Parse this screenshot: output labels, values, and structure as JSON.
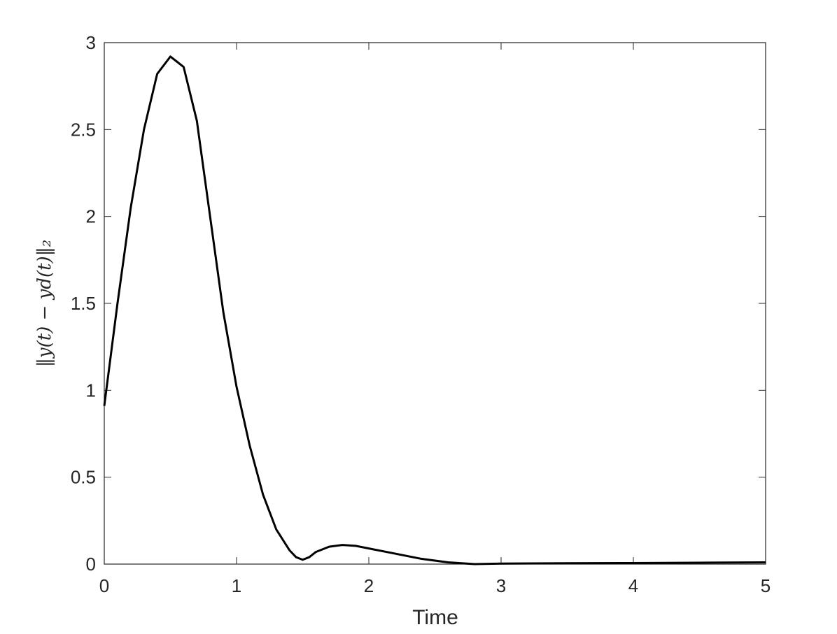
{
  "chart_data": {
    "type": "line",
    "xlabel": "Time",
    "ylabel": "‖y(t) − yd(t)‖₂",
    "x": [
      0,
      0.1,
      0.2,
      0.3,
      0.4,
      0.5,
      0.6,
      0.7,
      0.8,
      0.9,
      1.0,
      1.1,
      1.2,
      1.3,
      1.4,
      1.45,
      1.5,
      1.55,
      1.6,
      1.7,
      1.8,
      1.9,
      2.0,
      2.2,
      2.4,
      2.6,
      2.8,
      3.0,
      3.5,
      4.0,
      4.5,
      5.0
    ],
    "series": [
      {
        "color": "#000000",
        "values": [
          0.91,
          1.5,
          2.05,
          2.5,
          2.82,
          2.92,
          2.86,
          2.55,
          2.0,
          1.45,
          1.02,
          0.68,
          0.4,
          0.2,
          0.08,
          0.04,
          0.025,
          0.04,
          0.07,
          0.1,
          0.11,
          0.105,
          0.09,
          0.06,
          0.03,
          0.01,
          0.0,
          0.003,
          0.005,
          0.006,
          0.008,
          0.01
        ]
      }
    ],
    "xlim": [
      0,
      5
    ],
    "ylim": [
      0,
      3
    ],
    "xticks": [
      0,
      1,
      2,
      3,
      4,
      5
    ],
    "yticks": [
      0,
      0.5,
      1,
      1.5,
      2,
      2.5,
      3
    ],
    "grid": false
  }
}
